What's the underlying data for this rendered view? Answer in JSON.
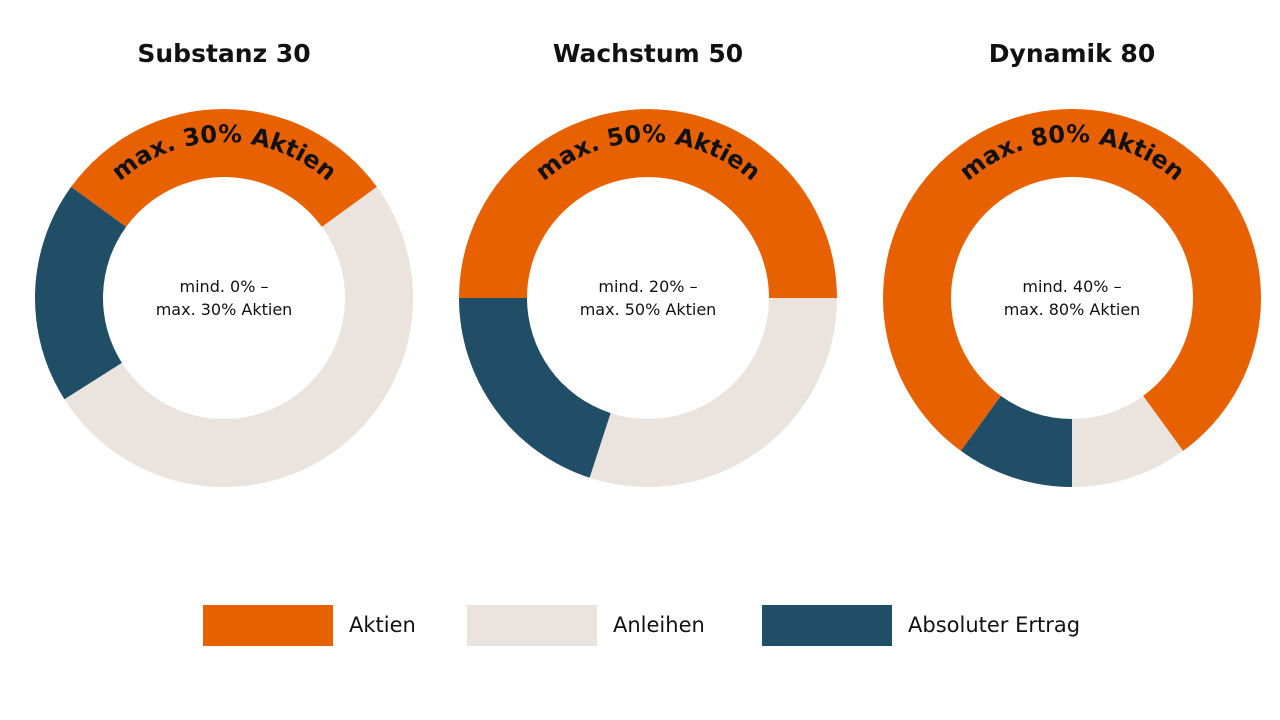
{
  "colors": {
    "aktien": "#E86100",
    "anleihen": "#EBE3DD",
    "absoluter_ertrag": "#1F4E66"
  },
  "chart_data": [
    {
      "type": "pie",
      "title": "Substanz 30",
      "arc_label": "max. 30% Aktien",
      "center_label": [
        "mind. 0% –",
        "max. 30% Aktien"
      ],
      "slices": [
        {
          "category": "Aktien",
          "value": 30
        },
        {
          "category": "Anleihen",
          "value": 51
        },
        {
          "category": "Absoluter Ertrag",
          "value": 19
        }
      ]
    },
    {
      "type": "pie",
      "title": "Wachstum 50",
      "arc_label": "max. 50% Aktien",
      "center_label": [
        "mind. 20% –",
        "max. 50% Aktien"
      ],
      "slices": [
        {
          "category": "Aktien",
          "value": 50
        },
        {
          "category": "Anleihen",
          "value": 30
        },
        {
          "category": "Absoluter Ertrag",
          "value": 20
        }
      ]
    },
    {
      "type": "pie",
      "title": "Dynamik 80",
      "arc_label": "max. 80% Aktien",
      "center_label": [
        "mind. 40% –",
        "max. 80% Aktien"
      ],
      "slices": [
        {
          "category": "Aktien",
          "value": 80
        },
        {
          "category": "Anleihen",
          "value": 10
        },
        {
          "category": "Absoluter Ertrag",
          "value": 10
        }
      ]
    }
  ],
  "legend": [
    {
      "label": "Aktien",
      "color": "#E86100"
    },
    {
      "label": "Anleihen",
      "color": "#EBE3DD"
    },
    {
      "label": "Absoluter Ertrag",
      "color": "#1F4E66"
    }
  ]
}
